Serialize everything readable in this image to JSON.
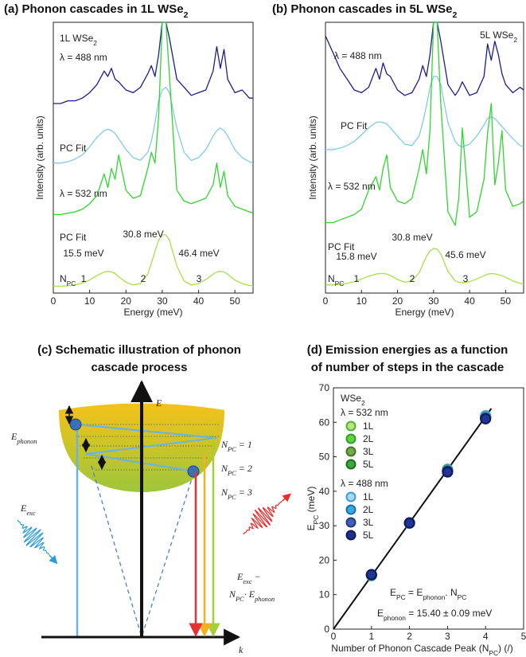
{
  "chart_data": [
    {
      "type": "line",
      "title": [
        {
          "t": "(a)  Phonon cascades in 1L WSe",
          "s": "2"
        }
      ],
      "x": [
        0,
        2,
        4,
        6,
        8,
        10,
        12,
        14,
        15,
        16,
        17,
        18,
        20,
        22,
        24,
        26,
        27,
        28,
        29,
        30,
        31,
        32,
        34,
        36,
        38,
        40,
        42,
        44,
        45,
        46,
        47,
        48,
        50,
        52,
        54,
        55
      ],
      "xlim": [
        0,
        55
      ],
      "xticks": [
        0,
        10,
        20,
        30,
        40,
        50
      ],
      "ylim": [
        0,
        10
      ],
      "xlabel": "Energy (meV)",
      "ylabel": "Intensity (arb. units)",
      "sample_label": [
        {
          "t": "1L WSe",
          "s": "2"
        }
      ],
      "series": [
        {
          "name": "λ = 488 nm",
          "color": "#1c1c8f",
          "values": [
            7.0,
            7.0,
            7.1,
            7.1,
            7.2,
            7.4,
            7.7,
            8.2,
            8.0,
            8.3,
            7.9,
            7.8,
            7.5,
            7.4,
            7.6,
            8.1,
            8.4,
            8.0,
            8.8,
            10,
            10,
            9.4,
            7.9,
            7.6,
            7.3,
            7.4,
            7.5,
            8.2,
            9.1,
            8.3,
            9.0,
            7.9,
            7.4,
            7.5,
            7.2,
            7.2
          ]
        },
        {
          "name": "PC Fit",
          "color": "#82cbe8",
          "values": [
            4.8,
            4.8,
            4.85,
            4.95,
            5.1,
            5.4,
            5.75,
            6.0,
            6.05,
            6.0,
            5.9,
            5.7,
            5.3,
            5.0,
            4.9,
            5.2,
            5.6,
            6.3,
            7.1,
            7.5,
            7.6,
            7.4,
            6.1,
            5.2,
            4.9,
            5.0,
            5.3,
            5.8,
            6.0,
            6.1,
            6.0,
            5.8,
            5.3,
            5.0,
            4.85,
            4.8
          ]
        },
        {
          "name": "λ = 532 nm",
          "color": "#2fd62f",
          "values": [
            2.9,
            2.9,
            2.95,
            3.0,
            3.1,
            3.3,
            3.6,
            4.4,
            3.9,
            4.6,
            4.2,
            5.1,
            3.8,
            3.5,
            3.6,
            4.6,
            5.2,
            4.8,
            6.5,
            10,
            10,
            8.0,
            3.8,
            3.4,
            3.3,
            3.4,
            3.5,
            4.0,
            4.8,
            3.9,
            4.5,
            3.6,
            3.2,
            3.1,
            3.0,
            2.95
          ]
        },
        {
          "name": "PC Fit",
          "color": "#a8e04a",
          "values": [
            0.25,
            0.25,
            0.27,
            0.3,
            0.37,
            0.48,
            0.65,
            0.78,
            0.8,
            0.78,
            0.72,
            0.6,
            0.4,
            0.3,
            0.35,
            0.7,
            1.1,
            1.55,
            1.95,
            2.15,
            2.15,
            1.95,
            1.0,
            0.45,
            0.3,
            0.35,
            0.5,
            0.7,
            0.78,
            0.8,
            0.78,
            0.7,
            0.48,
            0.35,
            0.28,
            0.27
          ]
        }
      ],
      "peak_labels": [
        "15.5 meV",
        "30.8 meV",
        "46.4 meV"
      ],
      "npc_label": [
        {
          "t": "N",
          "s": "PC"
        }
      ],
      "npc_numbers": [
        "1",
        "2",
        "3"
      ]
    },
    {
      "type": "line",
      "title": [
        {
          "t": "(b)  Phonon cascades in 5L WSe",
          "s": "2"
        }
      ],
      "x": [
        0,
        2,
        4,
        6,
        8,
        10,
        12,
        14,
        15,
        16,
        17,
        18,
        20,
        22,
        24,
        26,
        27,
        28,
        29,
        30,
        31,
        32,
        34,
        36,
        37,
        38,
        40,
        42,
        44,
        45,
        46,
        47,
        48,
        49,
        50,
        52,
        54,
        55
      ],
      "xlim": [
        0,
        55
      ],
      "xticks": [
        0,
        10,
        20,
        30,
        40,
        50
      ],
      "ylim": [
        0,
        10
      ],
      "xlabel": "Energy (meV)",
      "ylabel": "Intensity (arb. units)",
      "sample_label": [
        {
          "t": "5L WSe",
          "s": "2"
        }
      ],
      "series": [
        {
          "name": "λ = 488 nm",
          "color": "#1c1c8f",
          "values": [
            9.5,
            8.9,
            8.3,
            7.9,
            7.5,
            7.4,
            7.6,
            8.3,
            7.9,
            8.5,
            8.1,
            8.0,
            7.5,
            7.3,
            7.4,
            7.9,
            8.4,
            8.0,
            8.8,
            10,
            10,
            9.3,
            7.7,
            7.3,
            7.5,
            7.8,
            7.3,
            7.4,
            8.0,
            9.2,
            8.6,
            9.3,
            8.8,
            8.1,
            7.7,
            7.4,
            7.6,
            7.5
          ]
        },
        {
          "name": "PC Fit",
          "color": "#82cbe8",
          "values": [
            5.3,
            5.3,
            5.35,
            5.45,
            5.6,
            5.85,
            6.1,
            6.3,
            6.32,
            6.3,
            6.25,
            6.1,
            5.8,
            5.5,
            5.45,
            5.8,
            6.3,
            6.9,
            7.6,
            8.0,
            8.0,
            7.7,
            6.3,
            5.6,
            5.45,
            5.4,
            5.5,
            5.8,
            6.2,
            6.45,
            6.5,
            6.45,
            6.3,
            6.15,
            6.0,
            5.7,
            5.45,
            5.4
          ]
        },
        {
          "name": "λ = 532 nm",
          "color": "#2fd62f",
          "values": [
            2.6,
            2.6,
            2.7,
            2.8,
            2.9,
            3.1,
            3.8,
            4.3,
            3.8,
            4.6,
            5.1,
            3.9,
            3.4,
            3.3,
            3.5,
            4.6,
            5.3,
            4.4,
            6.0,
            10,
            10,
            7.0,
            3.0,
            2.5,
            3.5,
            6.1,
            2.8,
            3.0,
            4.2,
            5.9,
            7.0,
            4.0,
            4.8,
            6.0,
            3.8,
            3.2,
            3.3,
            3.4
          ]
        },
        {
          "name": "PC Fit",
          "color": "#a8e04a",
          "values": [
            0.3,
            0.3,
            0.32,
            0.36,
            0.42,
            0.52,
            0.62,
            0.7,
            0.72,
            0.72,
            0.7,
            0.65,
            0.5,
            0.4,
            0.45,
            0.75,
            1.05,
            1.35,
            1.55,
            1.65,
            1.62,
            1.45,
            0.8,
            0.45,
            0.4,
            0.38,
            0.42,
            0.52,
            0.64,
            0.7,
            0.72,
            0.71,
            0.68,
            0.64,
            0.58,
            0.45,
            0.36,
            0.33
          ]
        }
      ],
      "peak_labels": [
        "15.8 meV",
        "30.8 meV",
        "45.6 meV"
      ],
      "npc_label": [
        {
          "t": "N",
          "s": "PC"
        }
      ],
      "npc_numbers": [
        "1",
        "2",
        "3"
      ]
    },
    {
      "type": "scatter",
      "title": [
        "(d) Emission energies as a function",
        "of number of steps in the cascade"
      ],
      "x": [
        1,
        2,
        3,
        4
      ],
      "xlim": [
        0,
        5
      ],
      "xticks": [
        0,
        1,
        2,
        3,
        4,
        5
      ],
      "ylim": [
        0,
        70
      ],
      "yticks": [
        0,
        10,
        20,
        30,
        40,
        50,
        60,
        70
      ],
      "xlabel": [
        {
          "t": "Number of Phonon Cascade Peak (N",
          "s": "PC"
        },
        {
          "t": ") (/)"
        }
      ],
      "ylabel": [
        {
          "t": "E",
          "s": "PC"
        },
        {
          "t": " (meV)"
        }
      ],
      "legend_title": [
        {
          "t": "WSe",
          "s": "2"
        }
      ],
      "legend_group_titles": [
        "λ = 532 nm",
        "λ = 488 nm"
      ],
      "legend_group_colors": [
        "#3ccc3c",
        "#3a9ad9"
      ],
      "series": [
        {
          "name": "1L",
          "group": 0,
          "color": "#b9e486",
          "edge_color": "#4fb52f",
          "values": [
            15.5,
            30.8,
            46.4,
            61.9
          ]
        },
        {
          "name": "2L",
          "group": 0,
          "color": "#5bd63a",
          "edge_color": "#2f9e2f",
          "values": [
            15.6,
            30.8,
            46.1,
            61.6
          ]
        },
        {
          "name": "3L",
          "group": 0,
          "color": "#79a84a",
          "edge_color": "#3c7a28",
          "values": [
            15.7,
            30.8,
            45.9,
            61.4
          ]
        },
        {
          "name": "5L",
          "group": 0,
          "color": "#3aa83a",
          "edge_color": "#1c6e1c",
          "values": [
            15.8,
            30.8,
            45.6,
            61.2
          ]
        },
        {
          "name": "1L",
          "group": 1,
          "color": "#a9d9f2",
          "edge_color": "#3f9bd6",
          "values": [
            15.6,
            30.7,
            46.2,
            61.8
          ]
        },
        {
          "name": "2L",
          "group": 1,
          "color": "#38a9e2",
          "edge_color": "#1d6fb0",
          "values": [
            15.7,
            30.8,
            45.9,
            61.3
          ]
        },
        {
          "name": "3L",
          "group": 1,
          "color": "#4263b3",
          "edge_color": "#1f3a8a",
          "values": [
            15.8,
            30.8,
            45.7,
            61.1
          ]
        },
        {
          "name": "5L",
          "group": 1,
          "color": "#1f318d",
          "edge_color": "#0d1a5e",
          "values": [
            15.8,
            30.8,
            45.6,
            61.0
          ]
        }
      ],
      "fit_line": {
        "x": [
          0,
          4.15
        ],
        "values": [
          0,
          64
        ],
        "color": "#111111"
      },
      "fit_equation": [
        {
          "t": "E",
          "s": "PC"
        },
        {
          "t": " = E",
          "s": "phonon"
        },
        {
          "t": ". N",
          "s": "PC"
        }
      ],
      "fit_result": [
        {
          "t": "E",
          "s": "phonon"
        },
        {
          "t": " = 15.40 ± 0.09 meV"
        }
      ]
    }
  ],
  "diagram": {
    "title": [
      "(c) Schematic illustration of phonon",
      "cascade process"
    ],
    "energy_axis": "E",
    "k_axis": "k",
    "phonon_label": [
      {
        "t": "E",
        "s": "phonon"
      }
    ],
    "exc_label": [
      {
        "t": "E",
        "s": "exc"
      }
    ],
    "npc_labels": [
      [
        {
          "t": "N",
          "s": "PC"
        },
        {
          "t": " = 1"
        }
      ],
      [
        {
          "t": "N",
          "s": "PC"
        },
        {
          "t": " = 2"
        }
      ],
      [
        {
          "t": "N",
          "s": "PC"
        },
        {
          "t": " = 3"
        }
      ]
    ],
    "npc_colors": [
      "#a6cf35",
      "#f0b21e",
      "#e23232"
    ],
    "emission_label": [
      [
        {
          "t": "E",
          "s": "exc"
        },
        {
          "t": " −"
        }
      ],
      [
        {
          "t": "N",
          "s": "PC"
        },
        {
          "t": "· E",
          "s": "phonon"
        }
      ]
    ]
  }
}
